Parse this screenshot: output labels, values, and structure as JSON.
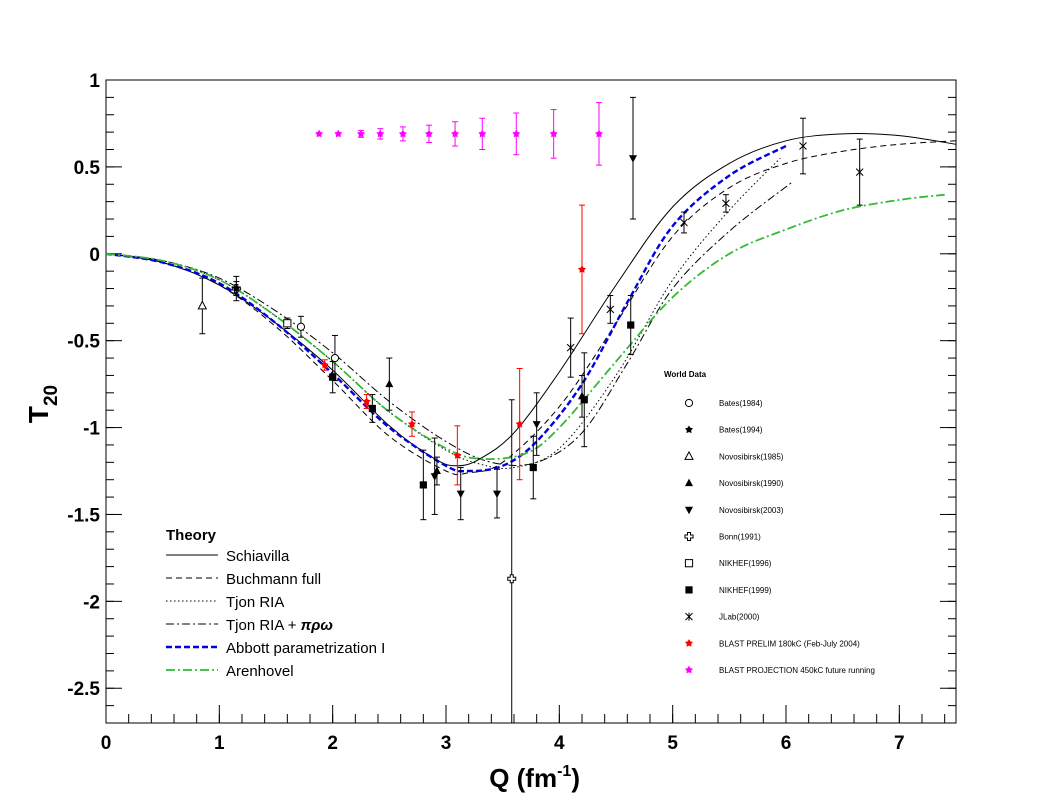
{
  "chart_data": {
    "type": "line",
    "title": "",
    "xlabel": "Q (fm",
    "xlabel_sup": "-1",
    "xlabel_close": ")",
    "ylabel": "T",
    "ylabel_sub": "20",
    "xlim": [
      0,
      7.5
    ],
    "ylim": [
      -2.7,
      1.0
    ],
    "x_ticks": [
      0,
      1,
      2,
      3,
      4,
      5,
      6,
      7
    ],
    "y_ticks": [
      -2.5,
      -2,
      -1.5,
      -1,
      -0.5,
      0,
      0.5,
      1
    ],
    "y_tick_labels": [
      "-2.5",
      "-2",
      "-1.5",
      "-1",
      "-0.5",
      "0",
      "0.5",
      "1"
    ],
    "grid": false,
    "theory_legend": {
      "title": "Theory",
      "position": "lower-left"
    },
    "series": [
      {
        "name": "Schiavilla",
        "color": "#000000",
        "dash": "none",
        "width": 1,
        "x": [
          0,
          0.5,
          1,
          1.5,
          2,
          2.5,
          2.9,
          3.1,
          3.3,
          3.6,
          4,
          4.5,
          5,
          5.5,
          6,
          6.5,
          7,
          7.5
        ],
        "y": [
          0,
          -0.05,
          -0.18,
          -0.4,
          -0.67,
          -0.99,
          -1.18,
          -1.22,
          -1.18,
          -1.03,
          -0.68,
          -0.18,
          0.27,
          0.52,
          0.65,
          0.69,
          0.68,
          0.63
        ]
      },
      {
        "name": "Buchmann full",
        "color": "#000000",
        "dash": "6,4",
        "width": 1,
        "x": [
          0,
          0.5,
          1,
          1.5,
          2,
          2.5,
          3,
          3.2,
          3.5,
          4,
          4.5,
          5,
          5.5,
          6,
          6.5,
          7,
          7.5
        ],
        "y": [
          0,
          -0.05,
          -0.18,
          -0.42,
          -0.73,
          -1.05,
          -1.25,
          -1.26,
          -1.2,
          -0.88,
          -0.4,
          0.1,
          0.38,
          0.52,
          0.59,
          0.63,
          0.65
        ]
      },
      {
        "name": "Tjon RIA",
        "color": "#000000",
        "dash": "1.5,2.5",
        "width": 1,
        "x": [
          0,
          0.5,
          1,
          1.5,
          2,
          2.5,
          3,
          3.3,
          3.6,
          4,
          4.5,
          5,
          5.5,
          5.95
        ],
        "y": [
          0,
          -0.04,
          -0.15,
          -0.36,
          -0.62,
          -0.91,
          -1.13,
          -1.21,
          -1.23,
          -1.12,
          -0.7,
          -0.15,
          0.25,
          0.55
        ]
      },
      {
        "name": "Tjon RIA + πρω",
        "legend_name": "Tjon RIA + ",
        "legend_greek": "πρω",
        "color": "#000000",
        "dash": "8,3,2,3",
        "width": 1,
        "x": [
          0,
          0.5,
          1,
          1.5,
          2,
          2.5,
          3,
          3.4,
          3.8,
          4.2,
          4.6,
          5,
          5.5,
          6.05
        ],
        "y": [
          0,
          -0.04,
          -0.14,
          -0.33,
          -0.57,
          -0.85,
          -1.08,
          -1.2,
          -1.2,
          -1.03,
          -0.63,
          -0.2,
          0.13,
          0.41
        ]
      },
      {
        "name": "Abbott parametrization I",
        "color": "#0000e0",
        "dash": "6,3",
        "width": 2.4,
        "x": [
          0,
          0.5,
          1,
          1.5,
          2,
          2.5,
          3,
          3.2,
          3.5,
          3.8,
          4.2,
          4.6,
          5,
          5.5,
          6
        ],
        "y": [
          0,
          -0.05,
          -0.17,
          -0.4,
          -0.69,
          -1.0,
          -1.22,
          -1.25,
          -1.22,
          -1.08,
          -0.75,
          -0.28,
          0.16,
          0.45,
          0.62
        ]
      },
      {
        "name": "Arenhovel",
        "color": "#33bb33",
        "dash": "9,3,2,3",
        "width": 1.8,
        "x": [
          0,
          0.5,
          1,
          1.5,
          2,
          2.5,
          3,
          3.3,
          3.7,
          4,
          4.5,
          5,
          5.5,
          6,
          6.5,
          7,
          7.4
        ],
        "y": [
          0,
          -0.04,
          -0.15,
          -0.36,
          -0.62,
          -0.91,
          -1.12,
          -1.18,
          -1.15,
          -1.0,
          -0.62,
          -0.25,
          0.0,
          0.14,
          0.25,
          0.31,
          0.34
        ]
      }
    ],
    "world_data_legend": {
      "title": "World Data",
      "entries": [
        {
          "label": "Bates(1984)",
          "marker": "open-circle",
          "color": "#000000"
        },
        {
          "label": "Bates(1994)",
          "marker": "filled-star",
          "color": "#000000"
        },
        {
          "label": "Novosibirsk(1985)",
          "marker": "open-triangle",
          "color": "#000000"
        },
        {
          "label": "Novosibirsk(1990)",
          "marker": "filled-triangle",
          "color": "#000000"
        },
        {
          "label": "Novosibirsk(2003)",
          "marker": "filled-triangle-down",
          "color": "#000000"
        },
        {
          "label": "Bonn(1991)",
          "marker": "open-cross",
          "color": "#000000"
        },
        {
          "label": "NIKHEF(1996)",
          "marker": "open-square",
          "color": "#000000"
        },
        {
          "label": "NIKHEF(1999)",
          "marker": "filled-square",
          "color": "#000000"
        },
        {
          "label": "JLab(2000)",
          "marker": "asterisk",
          "color": "#000000"
        },
        {
          "label": "BLAST PRELIM 180kC (Feb-July 2004)",
          "marker": "filled-star",
          "color": "#ff0000"
        },
        {
          "label": "BLAST PROJECTION 450kC future running",
          "marker": "filled-star",
          "color": "#ff00ff"
        }
      ]
    },
    "data_points": [
      {
        "x": 0.85,
        "y": -0.3,
        "err": 0.16,
        "marker": "open-triangle",
        "color": "#000000"
      },
      {
        "x": 1.15,
        "y": -0.2,
        "err": 0.07,
        "marker": "open-cross",
        "color": "#000000"
      },
      {
        "x": 1.15,
        "y": -0.2,
        "err": 0.04,
        "marker": "filled-star",
        "color": "#000000"
      },
      {
        "x": 1.6,
        "y": -0.4,
        "err": 0.03,
        "marker": "open-square",
        "color": "#000000"
      },
      {
        "x": 1.72,
        "y": -0.42,
        "err": 0.06,
        "marker": "open-circle",
        "color": "#000000"
      },
      {
        "x": 2.02,
        "y": -0.6,
        "err": 0.13,
        "marker": "open-circle",
        "color": "#000000"
      },
      {
        "x": 2.0,
        "y": -0.71,
        "err": 0.09,
        "marker": "filled-square",
        "color": "#000000"
      },
      {
        "x": 2.35,
        "y": -0.89,
        "err": 0.08,
        "marker": "filled-square",
        "color": "#000000"
      },
      {
        "x": 2.5,
        "y": -0.75,
        "err": 0.15,
        "marker": "filled-triangle",
        "color": "#000000"
      },
      {
        "x": 2.8,
        "y": -1.33,
        "err": 0.2,
        "marker": "filled-square",
        "color": "#000000"
      },
      {
        "x": 2.9,
        "y": -1.28,
        "err": 0.22,
        "marker": "filled-triangle-down",
        "color": "#000000"
      },
      {
        "x": 2.92,
        "y": -1.25,
        "err": 0.08,
        "marker": "filled-triangle",
        "color": "#000000"
      },
      {
        "x": 3.13,
        "y": -1.38,
        "err": 0.15,
        "marker": "filled-triangle-down",
        "color": "#000000"
      },
      {
        "x": 3.45,
        "y": -1.38,
        "err": 0.14,
        "marker": "filled-triangle-down",
        "color": "#000000"
      },
      {
        "x": 3.58,
        "y": -1.87,
        "err": 1.03,
        "marker": "open-cross",
        "color": "#000000"
      },
      {
        "x": 3.77,
        "y": -1.23,
        "err": 0.18,
        "marker": "filled-square",
        "color": "#000000"
      },
      {
        "x": 3.8,
        "y": -0.98,
        "err": 0.18,
        "marker": "filled-triangle-down",
        "color": "#000000"
      },
      {
        "x": 4.1,
        "y": -0.54,
        "err": 0.17,
        "marker": "asterisk",
        "color": "#000000"
      },
      {
        "x": 4.2,
        "y": -0.82,
        "err": 0.12,
        "marker": "filled-triangle",
        "color": "#000000"
      },
      {
        "x": 4.22,
        "y": -0.84,
        "err": 0.27,
        "marker": "filled-square",
        "color": "#000000"
      },
      {
        "x": 4.45,
        "y": -0.32,
        "err": 0.08,
        "marker": "asterisk",
        "color": "#000000"
      },
      {
        "x": 4.63,
        "y": -0.41,
        "err": 0.17,
        "marker": "filled-square",
        "color": "#000000"
      },
      {
        "x": 4.65,
        "y": 0.55,
        "err": 0.35,
        "marker": "filled-triangle-down",
        "color": "#000000"
      },
      {
        "x": 5.1,
        "y": 0.18,
        "err": 0.06,
        "marker": "asterisk",
        "color": "#000000"
      },
      {
        "x": 5.47,
        "y": 0.29,
        "err": 0.05,
        "marker": "asterisk",
        "color": "#000000"
      },
      {
        "x": 6.15,
        "y": 0.62,
        "err": 0.16,
        "marker": "asterisk",
        "color": "#000000"
      },
      {
        "x": 6.65,
        "y": 0.47,
        "err": 0.19,
        "marker": "asterisk",
        "color": "#000000"
      },
      {
        "x": 1.93,
        "y": -0.64,
        "err": 0.03,
        "marker": "filled-star",
        "color": "#ff0000"
      },
      {
        "x": 2.3,
        "y": -0.85,
        "err": 0.04,
        "marker": "filled-star",
        "color": "#ff0000"
      },
      {
        "x": 2.7,
        "y": -0.98,
        "err": 0.07,
        "marker": "filled-star",
        "color": "#ff0000"
      },
      {
        "x": 3.1,
        "y": -1.16,
        "err": 0.17,
        "marker": "filled-star",
        "color": "#ff0000"
      },
      {
        "x": 3.65,
        "y": -0.98,
        "err": 0.32,
        "marker": "filled-star",
        "color": "#ff0000"
      },
      {
        "x": 4.2,
        "y": -0.09,
        "err": 0.37,
        "marker": "filled-star",
        "color": "#ff0000"
      },
      {
        "x": 1.88,
        "y": 0.69,
        "err": 0.0,
        "marker": "filled-star",
        "color": "#ff00ff"
      },
      {
        "x": 2.05,
        "y": 0.69,
        "err": 0.0,
        "marker": "filled-star",
        "color": "#ff00ff"
      },
      {
        "x": 2.25,
        "y": 0.69,
        "err": 0.02,
        "marker": "filled-star",
        "color": "#ff00ff"
      },
      {
        "x": 2.42,
        "y": 0.69,
        "err": 0.03,
        "marker": "filled-star",
        "color": "#ff00ff"
      },
      {
        "x": 2.62,
        "y": 0.69,
        "err": 0.04,
        "marker": "filled-star",
        "color": "#ff00ff"
      },
      {
        "x": 2.85,
        "y": 0.69,
        "err": 0.05,
        "marker": "filled-star",
        "color": "#ff00ff"
      },
      {
        "x": 3.08,
        "y": 0.69,
        "err": 0.07,
        "marker": "filled-star",
        "color": "#ff00ff"
      },
      {
        "x": 3.32,
        "y": 0.69,
        "err": 0.09,
        "marker": "filled-star",
        "color": "#ff00ff"
      },
      {
        "x": 3.62,
        "y": 0.69,
        "err": 0.12,
        "marker": "filled-star",
        "color": "#ff00ff"
      },
      {
        "x": 3.95,
        "y": 0.69,
        "err": 0.14,
        "marker": "filled-star",
        "color": "#ff00ff"
      },
      {
        "x": 4.35,
        "y": 0.69,
        "err": 0.18,
        "marker": "filled-star",
        "color": "#ff00ff"
      }
    ]
  }
}
